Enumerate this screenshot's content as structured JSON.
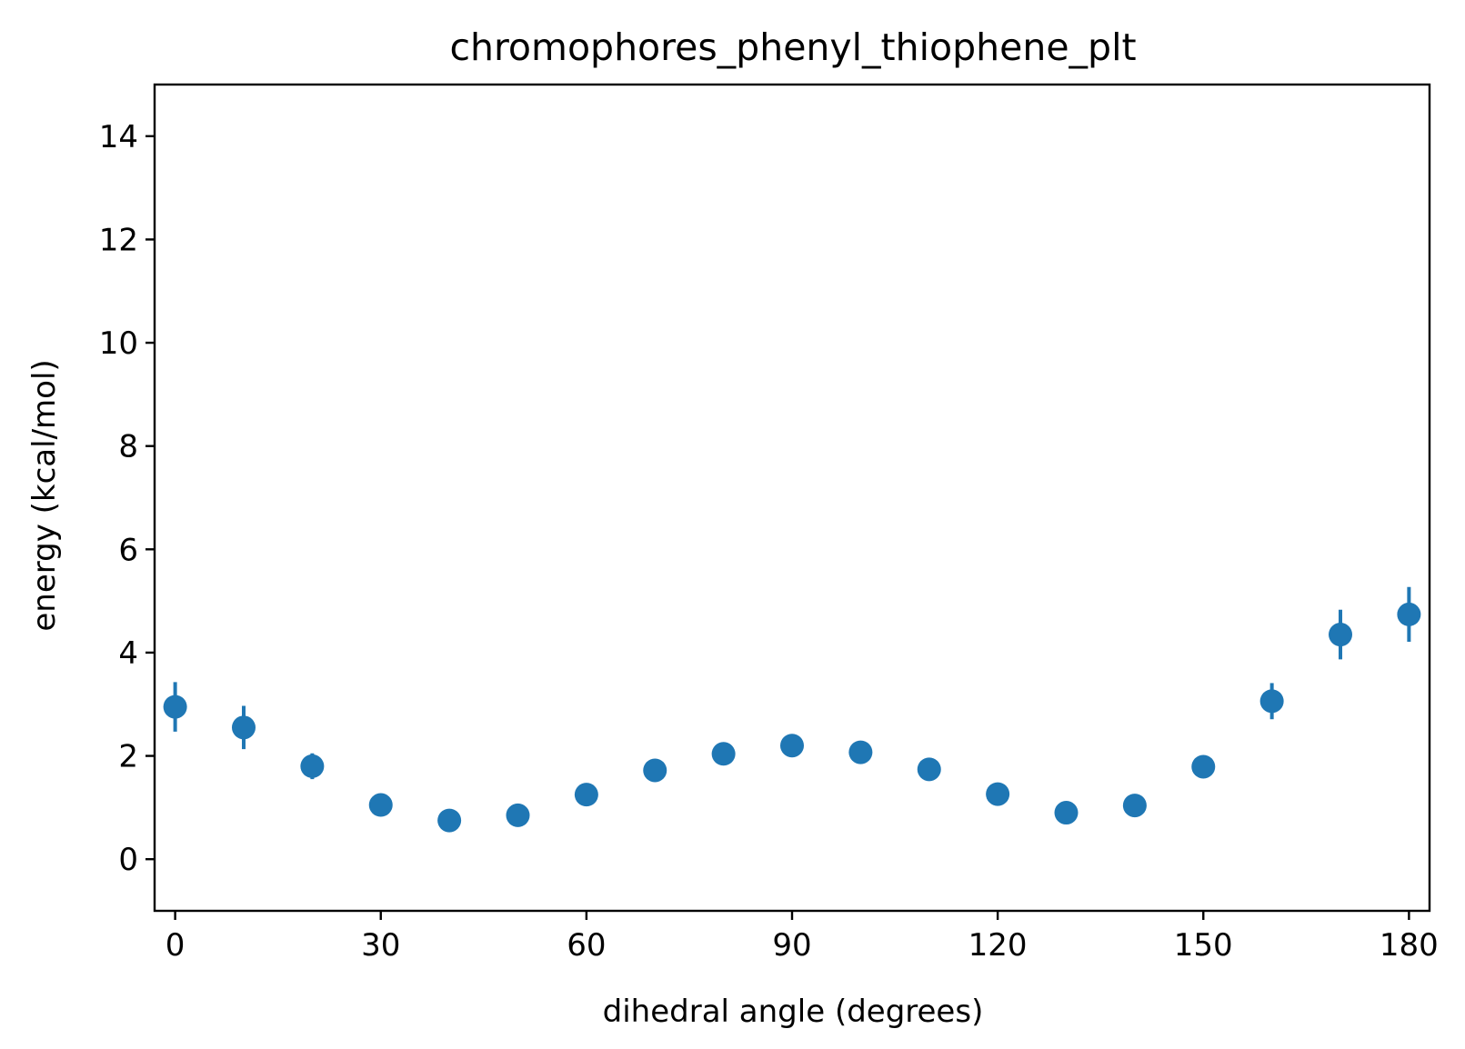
{
  "chart_data": {
    "type": "scatter",
    "title": "chromophores_phenyl_thiophene_plt",
    "xlabel": "dihedral angle (degrees)",
    "ylabel": "energy (kcal/mol)",
    "xlim": [
      -3,
      183
    ],
    "ylim": [
      -1,
      15
    ],
    "xticks": [
      0,
      30,
      60,
      90,
      120,
      150,
      180
    ],
    "yticks": [
      0,
      2,
      4,
      6,
      8,
      10,
      12,
      14
    ],
    "grid": false,
    "legend": "none",
    "color": "#1f77b4",
    "series": [
      {
        "x": [
          0,
          10,
          20,
          30,
          40,
          50,
          60,
          70,
          80,
          90,
          100,
          110,
          120,
          130,
          140,
          150,
          160,
          170,
          180
        ],
        "y": [
          2.95,
          2.55,
          1.8,
          1.05,
          0.75,
          0.85,
          1.25,
          1.72,
          2.04,
          2.2,
          2.07,
          1.74,
          1.26,
          0.9,
          1.04,
          1.79,
          3.06,
          4.35,
          4.74
        ],
        "yerr": [
          0.48,
          0.42,
          0.25,
          0.1,
          0.05,
          0.05,
          0.07,
          0.1,
          0.1,
          0.1,
          0.1,
          0.1,
          0.08,
          0.07,
          0.07,
          0.13,
          0.35,
          0.48,
          0.53
        ]
      }
    ]
  }
}
